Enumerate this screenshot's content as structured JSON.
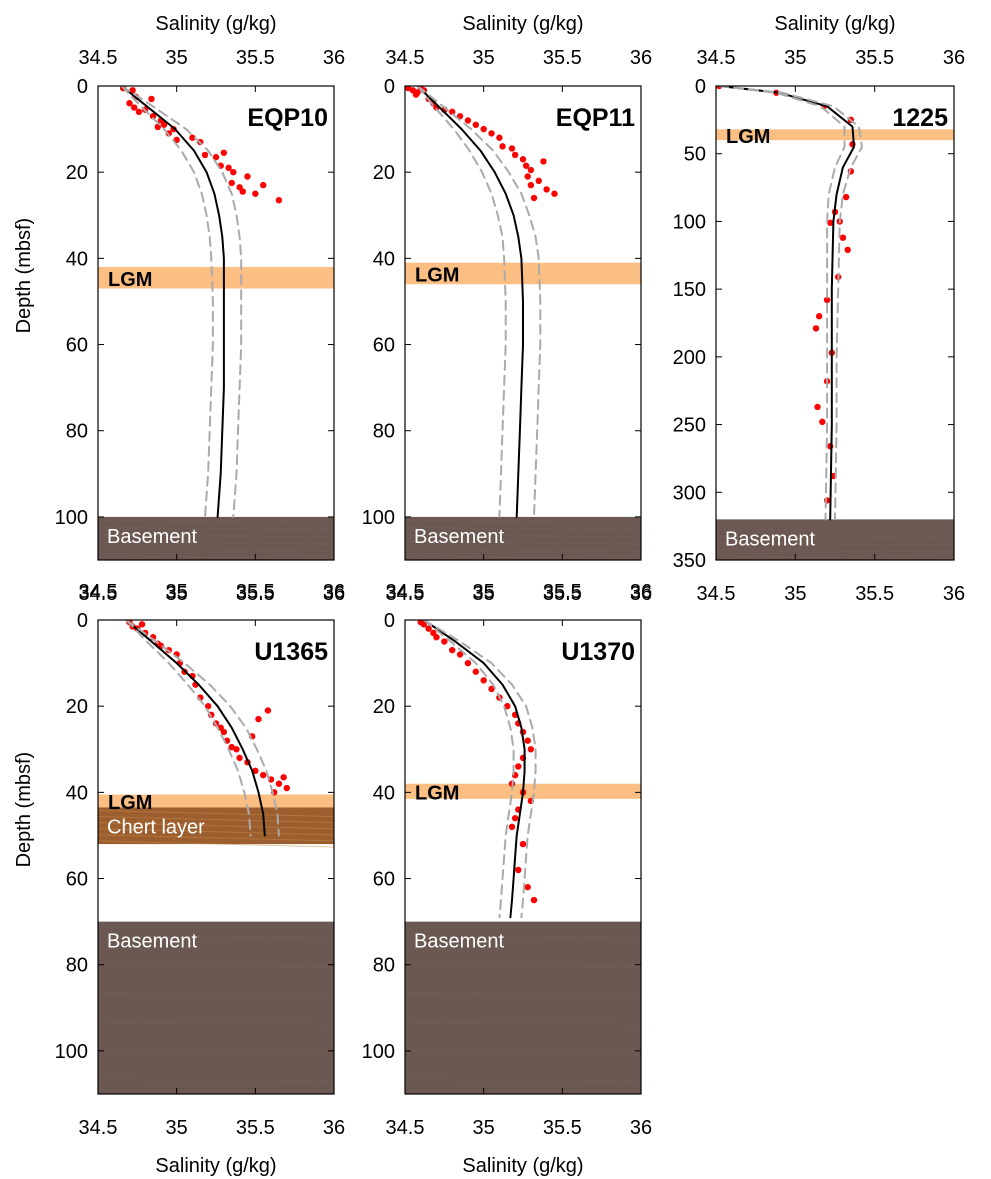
{
  "figure": {
    "y_axis_title": "Depth (mbsf)",
    "x_axis_title": "Salinity (g/kg)"
  },
  "chart_data": [
    {
      "type": "scatter",
      "site": "EQP10",
      "xlabel": "Salinity (g/kg)",
      "ylabel": "Depth (mbsf)",
      "xlim": [
        34.5,
        36
      ],
      "ylim": [
        0,
        110
      ],
      "x_ticks": [
        "34.5",
        "35",
        "35.5",
        "36"
      ],
      "y_ticks": [
        "0",
        "20",
        "40",
        "60",
        "80",
        "100"
      ],
      "lgm_band": {
        "label": "LGM",
        "from": 42,
        "to": 47,
        "color": "#fbbf83"
      },
      "layers": [
        {
          "label": "Basement",
          "from": 100,
          "to": 110,
          "color": "#6b5852"
        }
      ],
      "series": [
        {
          "kind": "points",
          "color": "#ff0000",
          "x": [
            34.66,
            34.72,
            34.74,
            34.7,
            34.73,
            34.76,
            34.8,
            34.84,
            34.85,
            34.9,
            34.92,
            34.88,
            34.95,
            34.98,
            35.0,
            35.1,
            35.15,
            35.18,
            35.25,
            35.3,
            35.28,
            35.33,
            35.36,
            35.35,
            35.4,
            35.45,
            35.42,
            35.5,
            35.55,
            35.65
          ],
          "y": [
            0.5,
            1,
            2.5,
            4,
            5,
            6,
            5.5,
            3,
            7,
            8,
            9,
            9.5,
            11,
            10,
            12.5,
            12,
            13,
            16,
            16.5,
            15.5,
            18.5,
            19,
            20,
            22.5,
            23.5,
            21,
            24.5,
            25,
            23,
            26.5
          ]
        },
        {
          "kind": "model",
          "color": "#000000",
          "x": [
            34.65,
            34.82,
            34.99,
            35.11,
            35.19,
            35.24,
            35.27,
            35.29,
            35.3,
            35.3,
            35.3,
            35.3,
            35.29,
            35.28,
            35.26
          ],
          "y": [
            0,
            5,
            10,
            15,
            20,
            25,
            30,
            35,
            40,
            50,
            60,
            70,
            80,
            90,
            100
          ]
        },
        {
          "kind": "bound",
          "color": "#aaaaaa",
          "x": [
            34.65,
            34.78,
            34.92,
            35.03,
            35.11,
            35.16,
            35.19,
            35.21,
            35.22,
            35.23,
            35.23,
            35.22,
            35.21,
            35.2,
            35.18
          ],
          "y": [
            0,
            5,
            10,
            15,
            20,
            25,
            30,
            35,
            40,
            50,
            60,
            70,
            80,
            90,
            100
          ]
        },
        {
          "kind": "bound",
          "color": "#aaaaaa",
          "x": [
            34.65,
            34.86,
            35.06,
            35.2,
            35.29,
            35.35,
            35.38,
            35.4,
            35.41,
            35.41,
            35.41,
            35.4,
            35.39,
            35.38,
            35.36
          ],
          "y": [
            0,
            5,
            10,
            15,
            20,
            25,
            30,
            35,
            40,
            50,
            60,
            70,
            80,
            90,
            100
          ]
        }
      ]
    },
    {
      "type": "scatter",
      "site": "EQP11",
      "xlabel": "Salinity (g/kg)",
      "ylabel": "Depth (mbsf)",
      "xlim": [
        34.5,
        36
      ],
      "ylim": [
        0,
        110
      ],
      "x_ticks": [
        "34.5",
        "35",
        "35.5",
        "36"
      ],
      "y_ticks": [
        "0",
        "20",
        "40",
        "60",
        "80",
        "100"
      ],
      "lgm_band": {
        "label": "LGM",
        "from": 41,
        "to": 46,
        "color": "#fbbf83"
      },
      "layers": [
        {
          "label": "Basement",
          "from": 100,
          "to": 110,
          "color": "#6b5852"
        }
      ],
      "series": [
        {
          "kind": "points",
          "color": "#ff0000",
          "x": [
            34.52,
            34.55,
            34.57,
            34.58,
            34.6,
            34.62,
            34.65,
            34.68,
            34.7,
            34.75,
            34.8,
            34.85,
            34.9,
            34.95,
            35.0,
            35.05,
            35.1,
            35.12,
            35.18,
            35.2,
            35.25,
            35.27,
            35.3,
            35.28,
            35.35,
            35.3,
            35.4,
            35.45,
            35.32,
            35.38
          ],
          "y": [
            0.5,
            1,
            2,
            1.5,
            0.5,
            1,
            3,
            4,
            5,
            5.5,
            6,
            7,
            8,
            9,
            10,
            11,
            12,
            14,
            14.5,
            16,
            17,
            18.5,
            19.5,
            21,
            22,
            23,
            24,
            25,
            26,
            17.5
          ]
        },
        {
          "kind": "model",
          "color": "#000000",
          "x": [
            34.58,
            34.72,
            34.86,
            34.98,
            35.07,
            35.14,
            35.19,
            35.22,
            35.24,
            35.25,
            35.25,
            35.24,
            35.23,
            35.22,
            35.21
          ],
          "y": [
            0,
            5,
            10,
            15,
            20,
            25,
            30,
            35,
            40,
            50,
            60,
            70,
            80,
            90,
            100
          ]
        },
        {
          "kind": "bound",
          "color": "#aaaaaa",
          "x": [
            34.58,
            34.69,
            34.81,
            34.91,
            34.99,
            35.05,
            35.09,
            35.12,
            35.13,
            35.14,
            35.14,
            35.13,
            35.12,
            35.11,
            35.1
          ],
          "y": [
            0,
            5,
            10,
            15,
            20,
            25,
            30,
            35,
            40,
            50,
            60,
            70,
            80,
            90,
            100
          ]
        },
        {
          "kind": "bound",
          "color": "#aaaaaa",
          "x": [
            34.58,
            34.75,
            34.92,
            35.06,
            35.16,
            35.24,
            35.29,
            35.33,
            35.35,
            35.36,
            35.36,
            35.35,
            35.34,
            35.33,
            35.32
          ],
          "y": [
            0,
            5,
            10,
            15,
            20,
            25,
            30,
            35,
            40,
            50,
            60,
            70,
            80,
            90,
            100
          ]
        }
      ]
    },
    {
      "type": "scatter",
      "site": "1225",
      "xlabel": "Salinity (g/kg)",
      "ylabel": "Depth (mbsf)",
      "xlim": [
        34.5,
        36
      ],
      "ylim": [
        0,
        350
      ],
      "x_ticks": [
        "34.5",
        "35",
        "35.5",
        "36"
      ],
      "y_ticks": [
        "0",
        "50",
        "100",
        "150",
        "200",
        "250",
        "300",
        "350"
      ],
      "lgm_band": {
        "label": "LGM",
        "from": 32,
        "to": 40,
        "color": "#fbbf83"
      },
      "layers": [
        {
          "label": "Basement",
          "from": 320,
          "to": 350,
          "color": "#6b5852"
        }
      ],
      "series": [
        {
          "kind": "points",
          "color": "#ff0000",
          "x": [
            34.52,
            34.88,
            35.18,
            35.35,
            35.36,
            35.35,
            35.32,
            35.28,
            35.25,
            35.22,
            35.3,
            35.33,
            35.27,
            35.2,
            35.15,
            35.13,
            35.23,
            35.2,
            35.14,
            35.17,
            35.22,
            35.24,
            35.2
          ],
          "y": [
            0,
            5,
            15,
            25,
            43,
            63,
            82,
            100,
            93,
            101,
            112,
            121,
            141,
            158,
            170,
            179,
            197,
            218,
            237,
            248,
            266,
            288,
            306
          ]
        },
        {
          "kind": "model",
          "color": "#000000",
          "x": [
            34.52,
            34.9,
            35.2,
            35.36,
            35.37,
            35.3,
            35.26,
            35.24,
            35.23,
            35.23,
            35.23,
            35.22
          ],
          "y": [
            0,
            5,
            15,
            30,
            45,
            60,
            80,
            100,
            150,
            200,
            250,
            320
          ]
        },
        {
          "kind": "bound",
          "color": "#aaaaaa",
          "x": [
            34.52,
            34.88,
            35.16,
            35.31,
            35.31,
            35.25,
            35.21,
            35.2,
            35.2,
            35.2,
            35.2,
            35.19
          ],
          "y": [
            0,
            5,
            15,
            30,
            45,
            60,
            80,
            100,
            150,
            200,
            250,
            320
          ]
        },
        {
          "kind": "bound",
          "color": "#aaaaaa",
          "x": [
            34.52,
            34.92,
            35.24,
            35.4,
            35.42,
            35.35,
            35.3,
            35.28,
            35.27,
            35.26,
            35.26,
            35.25
          ],
          "y": [
            0,
            5,
            15,
            30,
            45,
            60,
            80,
            100,
            150,
            200,
            250,
            320
          ]
        }
      ]
    },
    {
      "type": "scatter",
      "site": "U1365",
      "xlabel": "Salinity (g/kg)",
      "ylabel": "Depth (mbsf)",
      "xlim": [
        34.5,
        36
      ],
      "ylim": [
        0,
        110
      ],
      "x_ticks": [
        "34.5",
        "35",
        "35.5",
        "36"
      ],
      "y_ticks": [
        "0",
        "20",
        "40",
        "60",
        "80",
        "100"
      ],
      "lgm_band": {
        "label": "LGM",
        "from": 40.5,
        "to": 43.5,
        "color": "#fbbf83"
      },
      "layers": [
        {
          "label": "Chert layer",
          "from": 43.5,
          "to": 52,
          "color": "#9c5e2e"
        },
        {
          "label": "Basement",
          "from": 70,
          "to": 110,
          "color": "#6b5852"
        }
      ],
      "series": [
        {
          "kind": "points",
          "color": "#ff0000",
          "x": [
            34.7,
            34.72,
            34.75,
            34.78,
            34.8,
            34.85,
            34.88,
            34.9,
            34.95,
            35.0,
            35.02,
            35.05,
            35.1,
            35.12,
            35.15,
            35.2,
            35.22,
            35.25,
            35.28,
            35.3,
            35.32,
            35.35,
            35.38,
            35.4,
            35.45,
            35.5,
            35.55,
            35.6,
            35.65,
            35.7,
            35.62,
            35.68,
            35.58,
            35.52,
            35.48
          ],
          "y": [
            0.5,
            1.5,
            2,
            1,
            3,
            4,
            5.5,
            6,
            7,
            8,
            10,
            12,
            13,
            15,
            18,
            20,
            22,
            24,
            25,
            26,
            28,
            29.5,
            30,
            32,
            33,
            35,
            36,
            37,
            38,
            39,
            40,
            36.5,
            21,
            23,
            27
          ]
        },
        {
          "kind": "model",
          "color": "#000000",
          "x": [
            34.68,
            34.84,
            35.0,
            35.14,
            35.26,
            35.35,
            35.42,
            35.48,
            35.52,
            35.55,
            35.56
          ],
          "y": [
            0,
            5,
            10,
            15,
            20,
            25,
            30,
            35,
            40,
            45,
            50
          ]
        },
        {
          "kind": "bound",
          "color": "#aaaaaa",
          "x": [
            34.68,
            34.81,
            34.95,
            35.07,
            35.18,
            35.26,
            35.33,
            35.39,
            35.43,
            35.46,
            35.47
          ],
          "y": [
            0,
            5,
            10,
            15,
            20,
            25,
            30,
            35,
            40,
            45,
            50
          ]
        },
        {
          "kind": "bound",
          "color": "#aaaaaa",
          "x": [
            34.68,
            34.87,
            35.05,
            35.21,
            35.34,
            35.44,
            35.51,
            35.57,
            35.61,
            35.64,
            35.65
          ],
          "y": [
            0,
            5,
            10,
            15,
            20,
            25,
            30,
            35,
            40,
            45,
            50
          ]
        }
      ]
    },
    {
      "type": "scatter",
      "site": "U1370",
      "xlabel": "Salinity (g/kg)",
      "ylabel": "Depth (mbsf)",
      "xlim": [
        34.5,
        36
      ],
      "ylim": [
        0,
        110
      ],
      "x_ticks": [
        "34.5",
        "35",
        "35.5",
        "36"
      ],
      "y_ticks": [
        "0",
        "20",
        "40",
        "60",
        "80",
        "100"
      ],
      "lgm_band": {
        "label": "LGM",
        "from": 38,
        "to": 41.5,
        "color": "#fbbf83"
      },
      "layers": [
        {
          "label": "Basement",
          "from": 70,
          "to": 110,
          "color": "#6b5852"
        }
      ],
      "series": [
        {
          "kind": "points",
          "color": "#ff0000",
          "x": [
            34.6,
            34.62,
            34.65,
            34.68,
            34.7,
            34.75,
            34.8,
            34.85,
            34.9,
            34.95,
            35.0,
            35.05,
            35.1,
            35.15,
            35.2,
            35.22,
            35.25,
            35.28,
            35.3,
            35.25,
            35.22,
            35.2,
            35.18,
            35.25,
            35.3,
            35.22,
            35.2,
            35.18,
            35.25,
            35.22,
            35.28,
            35.32
          ],
          "y": [
            0.5,
            1,
            2,
            3,
            4,
            5,
            7,
            8,
            10,
            12,
            14,
            16,
            18,
            20,
            22,
            24,
            26,
            28,
            30,
            32,
            34,
            36,
            38,
            40,
            42,
            44,
            46,
            48,
            52,
            58,
            62,
            65
          ]
        },
        {
          "kind": "model",
          "color": "#000000",
          "x": [
            34.62,
            34.82,
            35.0,
            35.12,
            35.2,
            35.24,
            35.26,
            35.26,
            35.25,
            35.23,
            35.21,
            35.2,
            35.19,
            35.18,
            35.17
          ],
          "y": [
            0,
            5,
            10,
            15,
            20,
            25,
            30,
            35,
            40,
            45,
            50,
            55,
            60,
            65,
            69
          ]
        },
        {
          "kind": "bound",
          "color": "#aaaaaa",
          "x": [
            34.62,
            34.79,
            34.95,
            35.06,
            35.13,
            35.17,
            35.19,
            35.19,
            35.18,
            35.16,
            35.14,
            35.13,
            35.12,
            35.11,
            35.1
          ],
          "y": [
            0,
            5,
            10,
            15,
            20,
            25,
            30,
            35,
            40,
            45,
            50,
            55,
            60,
            65,
            69
          ]
        },
        {
          "kind": "bound",
          "color": "#aaaaaa",
          "x": [
            34.62,
            34.85,
            35.05,
            35.18,
            35.27,
            35.31,
            35.33,
            35.33,
            35.32,
            35.3,
            35.28,
            35.27,
            35.26,
            35.25,
            35.24
          ],
          "y": [
            0,
            5,
            10,
            15,
            20,
            25,
            30,
            35,
            40,
            45,
            50,
            55,
            60,
            65,
            69
          ]
        }
      ]
    }
  ]
}
